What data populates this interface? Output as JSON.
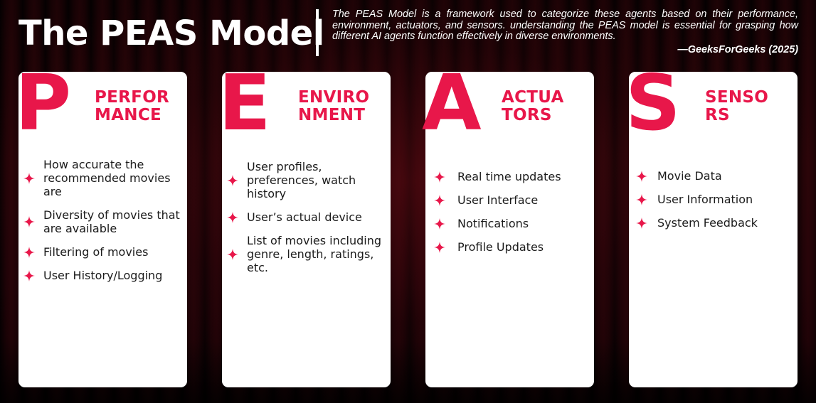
{
  "header": {
    "title": "The PEAS Model",
    "quote": "The PEAS Model is a framework used to categorize these agents based on their performance, environment, actuators, and sensors. understanding the PEAS model is essential for grasping how different AI agents function effectively in diverse environments.",
    "source": "—GeeksForGeeks (2025)"
  },
  "colors": {
    "accent": "#e8174a",
    "card_background": "#ffffff",
    "text": "#1b1b1b",
    "page_background": "#1c0306"
  },
  "icons": {
    "bullet": "sparkle-star-icon"
  },
  "cards": [
    {
      "letter": "P",
      "heading_lines": [
        "PERFOR",
        "MANCE"
      ],
      "items": [
        "How accurate the recommended movies are",
        "Diversity of movies that are available",
        "Filtering of movies",
        "User History/Logging"
      ]
    },
    {
      "letter": "E",
      "heading_lines": [
        "ENVIRO",
        "NMENT"
      ],
      "items": [
        "User profiles, preferences, watch history",
        "User’s actual device",
        "List of movies including genre, length, ratings, etc."
      ]
    },
    {
      "letter": "A",
      "heading_lines": [
        "ACTUA",
        "TORS"
      ],
      "items": [
        "Real time updates",
        "User Interface",
        "Notifications",
        "Profile Updates"
      ]
    },
    {
      "letter": "S",
      "heading_lines": [
        "SENSO",
        "RS"
      ],
      "items": [
        "Movie Data",
        "User Information",
        "System Feedback"
      ]
    }
  ]
}
